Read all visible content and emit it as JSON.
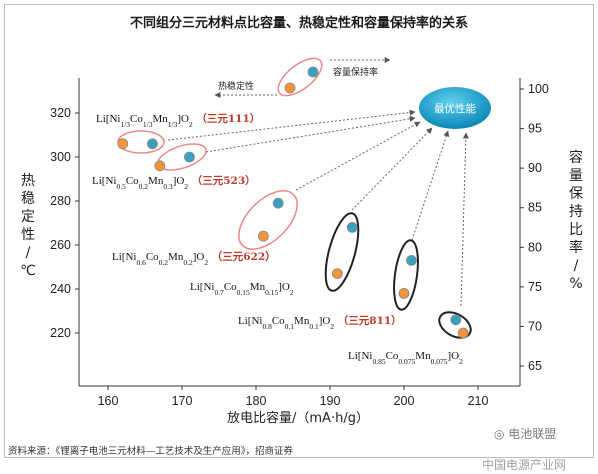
{
  "chart_data": {
    "type": "scatter",
    "title": "不同组分三元材料点比容量、热稳定性和容量保持率的关系",
    "xlabel": "放电比容量/（mA·h/g）",
    "ylabel_left": "热稳定性/℃",
    "ylabel_right": "容量保持比率/%",
    "xlim": [
      155,
      215
    ],
    "ylim_left": [
      205,
      330
    ],
    "ylim_right": [
      62.5,
      101.5
    ],
    "x_ticks": [
      160,
      170,
      180,
      190,
      200,
      210
    ],
    "y_left_ticks": [
      220,
      240,
      260,
      280,
      300,
      320
    ],
    "y_right_ticks": [
      65,
      70,
      75,
      80,
      85,
      90,
      95,
      100
    ],
    "thermal_series_color": "#f2953a",
    "retention_series_color": "#3aa0c0",
    "materials": [
      {
        "formula_main": "Li[Ni",
        "s1": "1/3",
        "t1": "Co",
        "s2": "1/3",
        "t2": "Mn",
        "s3": "1/3",
        "t3": "]O",
        "s4": "2",
        "tag": "（三元111）",
        "thermal_points": [
          [
            162,
            306
          ],
          [
            167,
            296
          ]
        ],
        "retention_point": [
          166,
          306
        ],
        "retention_point2": [
          171,
          300
        ]
      },
      {
        "formula_main": "Li[Ni",
        "s1": "0.5",
        "t1": "Co",
        "s2": "0.2",
        "t2": "Mn",
        "s3": "0.3",
        "t3": "]O",
        "s4": "2",
        "tag": "（三元523）"
      },
      {
        "formula_main": "Li[Ni",
        "s1": "0.6",
        "t1": "Co",
        "s2": "0.2",
        "t2": "Mn",
        "s3": "0.2",
        "t3": "]O",
        "s4": "2",
        "tag": "（三元622）",
        "thermal": [
          181,
          264
        ],
        "retention": [
          183,
          279
        ]
      },
      {
        "formula_main": "Li[Ni",
        "s1": "0.7",
        "t1": "Co",
        "s2": "0.15",
        "t2": "Mn",
        "s3": "0.15",
        "t3": "]O",
        "s4": "2",
        "tag": "",
        "thermal": [
          191,
          247
        ],
        "retention": [
          193,
          268
        ]
      },
      {
        "formula_main": "Li[Ni",
        "s1": "0.8",
        "t1": "Co",
        "s2": "0.1",
        "t2": "Mn",
        "s3": "0.1",
        "t3": "]O",
        "s4": "2",
        "tag": "（三元811）",
        "thermal": [
          200,
          238
        ],
        "retention": [
          201,
          253
        ]
      },
      {
        "formula_main": "Li[Ni",
        "s1": "0.85",
        "t1": "Co",
        "s2": "0.075",
        "t2": "Mn",
        "s3": "0.075",
        "t3": "]O",
        "s4": "2",
        "tag": "",
        "thermal": [
          208,
          220
        ],
        "retention": [
          207,
          226
        ]
      }
    ],
    "legend_thermal": "热稳定性",
    "legend_retention": "容量保持率",
    "best_label": "最优性能"
  },
  "source_text": "资料来源：《锂离子电池三元材料—工艺技术及生产应用》，招商证券",
  "watermark_wechat": "电池联盟",
  "watermark_footer": "中国电源产业网"
}
